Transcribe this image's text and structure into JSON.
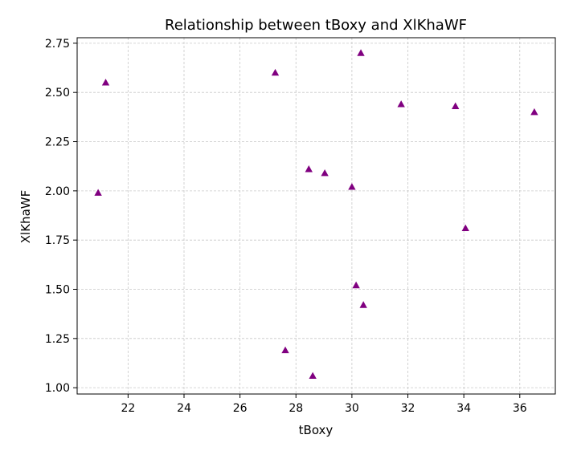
{
  "chart_data": {
    "type": "scatter",
    "title": "Relationship between tBoxy and XlKhaWF",
    "xlabel": "tBoxy",
    "ylabel": "XlKhaWF",
    "xlim": [
      20.18,
      37.27
    ],
    "ylim": [
      0.968,
      2.778
    ],
    "xticks": [
      22,
      24,
      26,
      28,
      30,
      32,
      34,
      36
    ],
    "yticks": [
      1.0,
      1.25,
      1.5,
      1.75,
      2.0,
      2.25,
      2.5,
      2.75
    ],
    "xtick_labels": [
      "22",
      "24",
      "26",
      "28",
      "30",
      "32",
      "34",
      "36"
    ],
    "ytick_labels": [
      "1.00",
      "1.25",
      "1.50",
      "1.75",
      "2.00",
      "2.25",
      "2.50",
      "2.75"
    ],
    "grid": true,
    "marker": "triangle",
    "color": "#800080",
    "points": [
      {
        "x": 20.93,
        "y": 1.99
      },
      {
        "x": 21.2,
        "y": 2.55
      },
      {
        "x": 27.26,
        "y": 2.6
      },
      {
        "x": 27.62,
        "y": 1.19
      },
      {
        "x": 28.46,
        "y": 2.11
      },
      {
        "x": 28.6,
        "y": 1.06
      },
      {
        "x": 29.03,
        "y": 2.09
      },
      {
        "x": 30.0,
        "y": 2.02
      },
      {
        "x": 30.15,
        "y": 1.52
      },
      {
        "x": 30.32,
        "y": 2.7
      },
      {
        "x": 30.41,
        "y": 1.42
      },
      {
        "x": 31.76,
        "y": 2.44
      },
      {
        "x": 33.7,
        "y": 2.43
      },
      {
        "x": 34.06,
        "y": 1.81
      },
      {
        "x": 36.52,
        "y": 2.4
      }
    ]
  }
}
